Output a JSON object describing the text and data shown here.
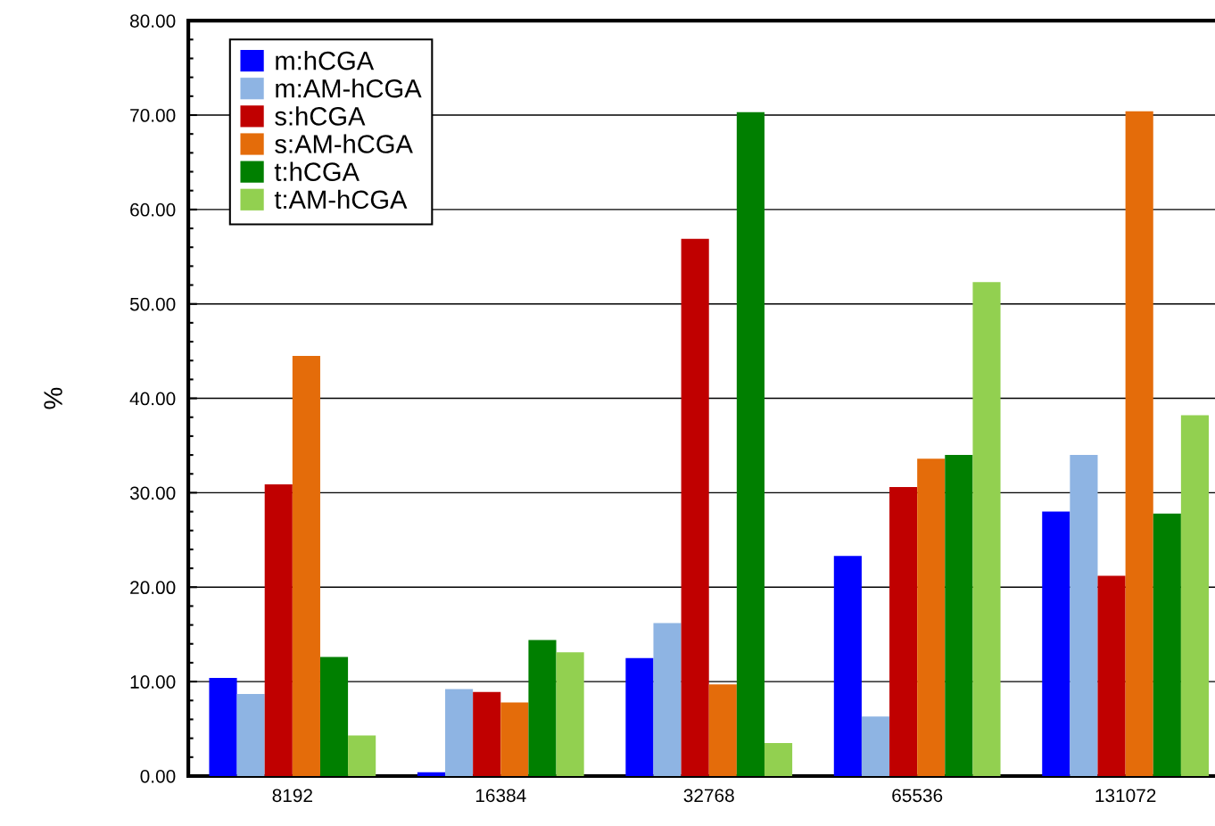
{
  "chart_data": {
    "type": "bar",
    "ylabel": "%",
    "categories": [
      "8192",
      "16384",
      "32768",
      "65536",
      "131072"
    ],
    "series": [
      {
        "name": "m:hCGA",
        "color": "#0000ff",
        "values": [
          10.4,
          0.4,
          12.5,
          23.3,
          28.0
        ]
      },
      {
        "name": "m:AM-hCGA",
        "color": "#8eb4e3",
        "values": [
          8.7,
          9.2,
          16.2,
          6.3,
          34.0
        ]
      },
      {
        "name": "s:hCGA",
        "color": "#c00000",
        "values": [
          30.9,
          8.9,
          56.9,
          30.6,
          21.2
        ]
      },
      {
        "name": "s:AM-hCGA",
        "color": "#e46c0a",
        "values": [
          44.5,
          7.8,
          9.7,
          33.6,
          70.4
        ]
      },
      {
        "name": "t:hCGA",
        "color": "#007f00",
        "values": [
          12.6,
          14.4,
          70.3,
          34.0,
          27.8
        ]
      },
      {
        "name": "t:AM-hCGA",
        "color": "#92d050",
        "values": [
          4.3,
          13.1,
          3.5,
          52.3,
          38.2
        ]
      }
    ],
    "ylim": [
      0,
      80
    ],
    "yticks": [
      {
        "value": 0,
        "label": "0.00"
      },
      {
        "value": 10,
        "label": "10.00"
      },
      {
        "value": 20,
        "label": "20.00"
      },
      {
        "value": 30,
        "label": "30.00"
      },
      {
        "value": 40,
        "label": "40.00"
      },
      {
        "value": 50,
        "label": "50.00"
      },
      {
        "value": 60,
        "label": "60.00"
      },
      {
        "value": 70,
        "label": "70.00"
      },
      {
        "value": 80,
        "label": "80.00"
      }
    ],
    "grid": "y",
    "legend": "top left"
  }
}
